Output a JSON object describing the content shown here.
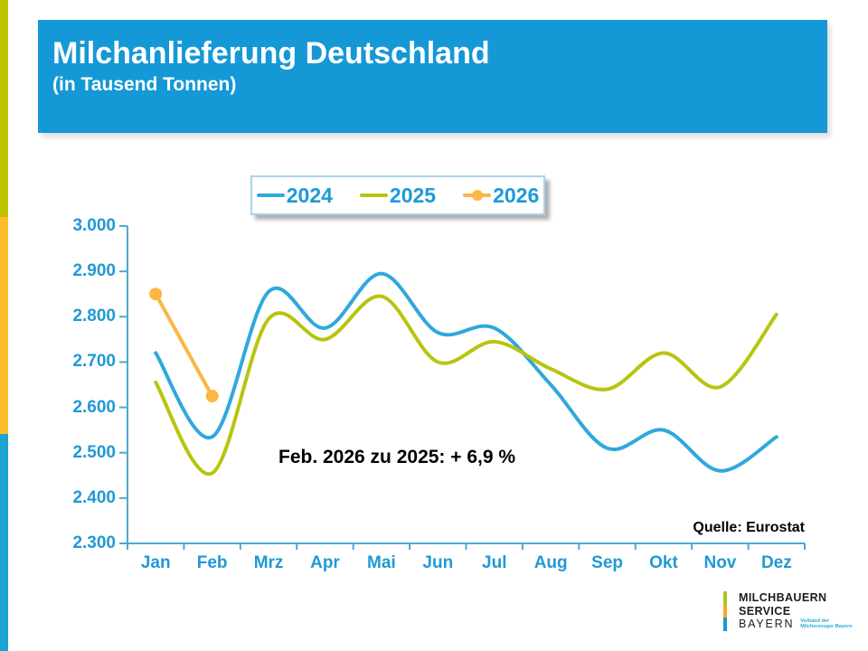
{
  "accent_stripe": {
    "colors": [
      "#bfc400",
      "#fdbe2c",
      "#1ba3d2"
    ]
  },
  "header": {
    "title": "Milchanlieferung Deutschland",
    "subtitle": "(in Tausend Tonnen)",
    "bg_color": "#1598d6"
  },
  "chart_data": {
    "type": "line",
    "title": "Milchanlieferung Deutschland",
    "subtitle": "(in Tausend Tonnen)",
    "ylabel": "Tausend Tonnen",
    "categories": [
      "Jan",
      "Feb",
      "Mrz",
      "Apr",
      "Mai",
      "Jun",
      "Jul",
      "Aug",
      "Sep",
      "Okt",
      "Nov",
      "Dez"
    ],
    "series": [
      {
        "name": "2024",
        "color": "#31a8dc",
        "marker": false,
        "values": [
          2720,
          2535,
          2855,
          2775,
          2895,
          2765,
          2775,
          2650,
          2510,
          2550,
          2460,
          2535
        ]
      },
      {
        "name": "2025",
        "color": "#b8c40f",
        "marker": false,
        "values": [
          2655,
          2455,
          2795,
          2750,
          2845,
          2700,
          2745,
          2685,
          2640,
          2720,
          2645,
          2805
        ]
      },
      {
        "name": "2026",
        "color": "#fbb644",
        "marker": true,
        "values": [
          2850,
          2625,
          null,
          null,
          null,
          null,
          null,
          null,
          null,
          null,
          null,
          null
        ]
      }
    ],
    "ylim": [
      2300,
      3000
    ],
    "ytick_step": 100,
    "ytick_labels": [
      "3.000",
      "2.900",
      "2.800",
      "2.700",
      "2.600",
      "2.500",
      "2.400",
      "2.300"
    ],
    "smooth": true,
    "grid": false,
    "legend_position": "top",
    "axis_color": "#4fa8d5",
    "label_color": "#2099d5"
  },
  "legend": {
    "items": [
      {
        "label": "2024",
        "color": "#31a8dc",
        "marker": false
      },
      {
        "label": "2025",
        "color": "#b8c40f",
        "marker": false
      },
      {
        "label": "2026",
        "color": "#fbb644",
        "marker": true
      }
    ]
  },
  "annotation": {
    "text": "Feb. 2026 zu 2025: + 6,9 %"
  },
  "source": {
    "text": "Quelle: Eurostat"
  },
  "logo": {
    "line1": "MILCHBAUERN",
    "line2": "SERVICE",
    "line3": "BAYERN",
    "tagline_line1": "Verband der",
    "tagline_line2": "Milcherzeuger Bayern",
    "bar_colors": [
      "#a8c721",
      "#f9a81a",
      "#2196d3"
    ]
  }
}
